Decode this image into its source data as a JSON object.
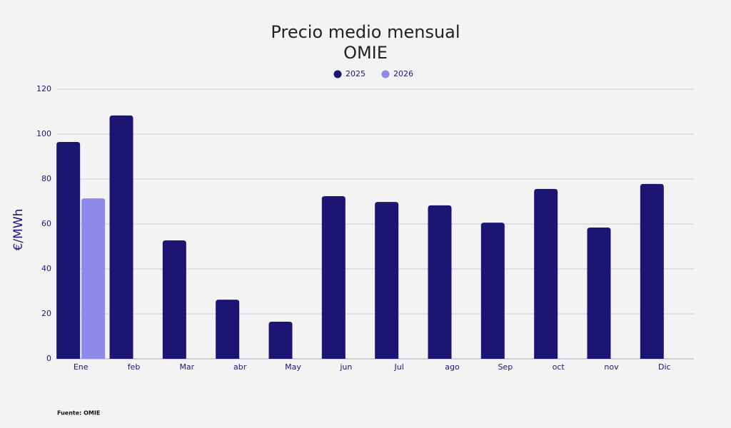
{
  "chart_data": {
    "type": "bar",
    "title": "Precio medio mensual",
    "subtitle": "OMIE",
    "ylabel": "€/MWh",
    "source": "Fuente: OMIE",
    "categories": [
      "Ene",
      "feb",
      "Mar",
      "abr",
      "May",
      "jun",
      "Jul",
      "ago",
      "Sep",
      "oct",
      "nov",
      "Dic"
    ],
    "series": [
      {
        "name": "2025",
        "color": "#1c1573",
        "values": [
          96.5,
          108.3,
          52.7,
          26.3,
          16.5,
          72.4,
          69.8,
          68.3,
          60.6,
          75.6,
          58.4,
          77.8
        ]
      },
      {
        "name": "2026",
        "color": "#8f89ec",
        "values": [
          71.4,
          null,
          null,
          null,
          null,
          null,
          null,
          null,
          null,
          null,
          null,
          null
        ]
      }
    ],
    "ylim": [
      0,
      120
    ],
    "yticks": [
      0,
      20,
      40,
      60,
      80,
      100,
      120
    ],
    "grid": true
  }
}
